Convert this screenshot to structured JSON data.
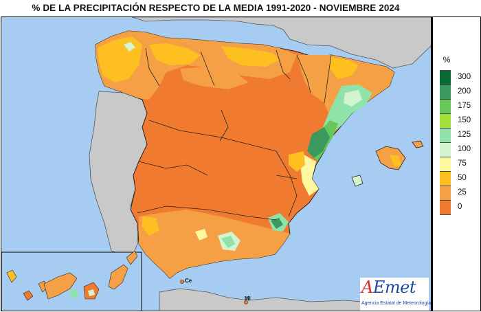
{
  "title": "% DE LA PRECIPITACIÓN RESPECTO DE LA MEDIA 1991-2020 - NOVIEMBRE 2024",
  "legend": {
    "unit": "%",
    "classes": [
      {
        "label": "300",
        "color": "#0b6b37"
      },
      {
        "label": "200",
        "color": "#3a9a5e"
      },
      {
        "label": "175",
        "color": "#66c85a"
      },
      {
        "label": "150",
        "color": "#a4e13c"
      },
      {
        "label": "125",
        "color": "#8fe3a8"
      },
      {
        "label": "100",
        "color": "#d4f4d0"
      },
      {
        "label": "75",
        "color": "#fdf7a0"
      },
      {
        "label": "50",
        "color": "#fdc020"
      },
      {
        "label": "25",
        "color": "#f5a045"
      },
      {
        "label": "0",
        "color": "#f07a30"
      }
    ]
  },
  "map": {
    "sea_color": "#a7ccf2",
    "foreign_land_color": "#c9c9c9",
    "labels": {
      "ceuta": "Ce",
      "melilla": "Ml"
    }
  },
  "logo": {
    "mark_a": "A",
    "mark_rest": "Emet",
    "subtitle": "Agencia Estatal de Meteorología"
  }
}
